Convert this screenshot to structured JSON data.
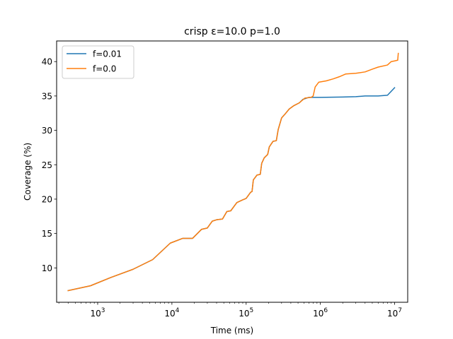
{
  "chart_data": {
    "type": "line",
    "title": "crisp ε=10.0 p=1.0",
    "xlabel": "Time (ms)",
    "ylabel": "Coverage (%)",
    "xscale": "log",
    "xlim": [
      280,
      15000000
    ],
    "ylim": [
      5.0,
      43.0
    ],
    "grid": false,
    "legend_position": "top-left",
    "x_ticks": [
      {
        "value": 1000,
        "base": "10",
        "exp": "3"
      },
      {
        "value": 10000,
        "base": "10",
        "exp": "4"
      },
      {
        "value": 100000,
        "base": "10",
        "exp": "5"
      },
      {
        "value": 1000000,
        "base": "10",
        "exp": "6"
      },
      {
        "value": 10000000,
        "base": "10",
        "exp": "7"
      }
    ],
    "y_ticks": [
      "10",
      "15",
      "20",
      "25",
      "30",
      "35",
      "40"
    ],
    "series": [
      {
        "name": "f=0.01",
        "color": "#1f77b4",
        "points": [
          [
            400,
            6.7
          ],
          [
            800,
            7.4
          ],
          [
            1500,
            8.6
          ],
          [
            3000,
            9.8
          ],
          [
            5500,
            11.2
          ],
          [
            9500,
            13.6
          ],
          [
            14000,
            14.3
          ],
          [
            19000,
            14.3
          ],
          [
            25000,
            15.6
          ],
          [
            30000,
            15.8
          ],
          [
            35000,
            16.8
          ],
          [
            40000,
            17.0
          ],
          [
            48000,
            17.1
          ],
          [
            55000,
            18.2
          ],
          [
            62000,
            18.3
          ],
          [
            75000,
            19.5
          ],
          [
            90000,
            19.9
          ],
          [
            100000,
            20.1
          ],
          [
            115000,
            21.0
          ],
          [
            120000,
            21.1
          ],
          [
            125000,
            22.8
          ],
          [
            140000,
            23.5
          ],
          [
            155000,
            23.6
          ],
          [
            162000,
            25.2
          ],
          [
            175000,
            26.0
          ],
          [
            195000,
            26.5
          ],
          [
            205000,
            27.6
          ],
          [
            230000,
            28.4
          ],
          [
            255000,
            28.5
          ],
          [
            270000,
            30.1
          ],
          [
            300000,
            31.8
          ],
          [
            330000,
            32.3
          ],
          [
            380000,
            33.1
          ],
          [
            440000,
            33.6
          ],
          [
            520000,
            34.0
          ],
          [
            580000,
            34.5
          ],
          [
            700000,
            34.8
          ],
          [
            1000000,
            34.8
          ],
          [
            2000000,
            34.85
          ],
          [
            3000000,
            34.9
          ],
          [
            4000000,
            35.0
          ],
          [
            6000000,
            35.0
          ],
          [
            8000000,
            35.1
          ],
          [
            10000000,
            36.2
          ]
        ]
      },
      {
        "name": "f=0.0",
        "color": "#ff7f0e",
        "points": [
          [
            400,
            6.7
          ],
          [
            800,
            7.4
          ],
          [
            1500,
            8.6
          ],
          [
            3000,
            9.8
          ],
          [
            5500,
            11.2
          ],
          [
            9500,
            13.6
          ],
          [
            14000,
            14.3
          ],
          [
            19000,
            14.3
          ],
          [
            25000,
            15.6
          ],
          [
            30000,
            15.8
          ],
          [
            35000,
            16.8
          ],
          [
            40000,
            17.0
          ],
          [
            48000,
            17.1
          ],
          [
            55000,
            18.2
          ],
          [
            62000,
            18.3
          ],
          [
            75000,
            19.5
          ],
          [
            90000,
            19.9
          ],
          [
            100000,
            20.1
          ],
          [
            115000,
            21.0
          ],
          [
            120000,
            21.1
          ],
          [
            125000,
            22.8
          ],
          [
            140000,
            23.5
          ],
          [
            155000,
            23.6
          ],
          [
            162000,
            25.2
          ],
          [
            175000,
            26.0
          ],
          [
            195000,
            26.5
          ],
          [
            205000,
            27.6
          ],
          [
            230000,
            28.4
          ],
          [
            255000,
            28.5
          ],
          [
            270000,
            30.1
          ],
          [
            300000,
            31.8
          ],
          [
            330000,
            32.3
          ],
          [
            380000,
            33.1
          ],
          [
            440000,
            33.6
          ],
          [
            520000,
            34.0
          ],
          [
            560000,
            34.3
          ],
          [
            620000,
            34.7
          ],
          [
            750000,
            34.8
          ],
          [
            800000,
            35.0
          ],
          [
            850000,
            36.3
          ],
          [
            950000,
            37.0
          ],
          [
            1200000,
            37.2
          ],
          [
            1500000,
            37.5
          ],
          [
            1800000,
            37.8
          ],
          [
            2200000,
            38.2
          ],
          [
            3000000,
            38.3
          ],
          [
            4000000,
            38.5
          ],
          [
            5000000,
            38.9
          ],
          [
            6000000,
            39.2
          ],
          [
            8000000,
            39.5
          ],
          [
            9000000,
            40.0
          ],
          [
            10000000,
            40.1
          ],
          [
            11000000,
            40.2
          ],
          [
            11200000,
            41.2
          ]
        ]
      }
    ]
  }
}
